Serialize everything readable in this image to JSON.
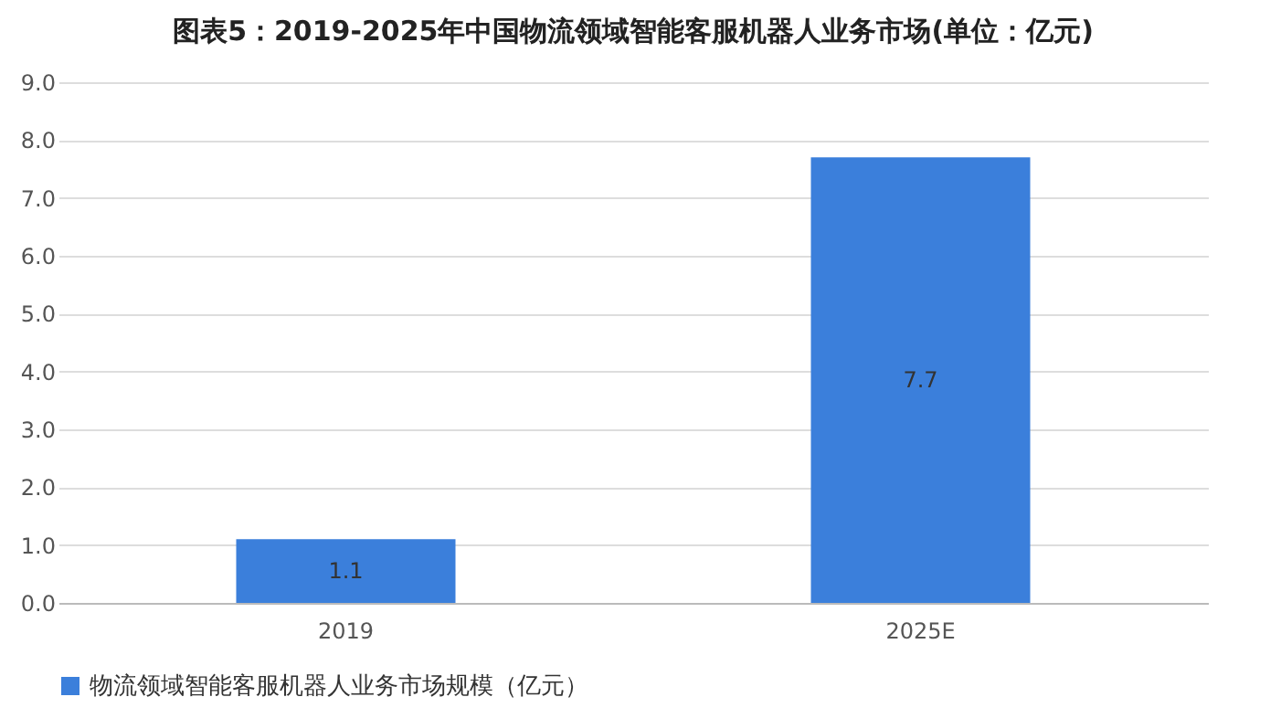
{
  "chart_data": {
    "type": "bar",
    "title": "图表5：2019-2025年中国物流领域智能客服机器人业务市场(单位：亿元)",
    "categories": [
      "2019",
      "2025E"
    ],
    "series": [
      {
        "name": "物流领域智能客服机器人业务市场规模（亿元）",
        "color": "#3b7fdb",
        "values": [
          1.1,
          7.7
        ]
      }
    ],
    "ylim": [
      0,
      9
    ],
    "yticks": [
      {
        "value": 0,
        "label": "0.0"
      },
      {
        "value": 1,
        "label": "1.0"
      },
      {
        "value": 2,
        "label": "2.0"
      },
      {
        "value": 3,
        "label": "3.0"
      },
      {
        "value": 4,
        "label": "4.0"
      },
      {
        "value": 5,
        "label": "5.0"
      },
      {
        "value": 6,
        "label": "6.0"
      },
      {
        "value": 7,
        "label": "7.0"
      },
      {
        "value": 8,
        "label": "8.0"
      },
      {
        "value": 9,
        "label": "9.0"
      }
    ],
    "grid": "y",
    "legend": "bottom",
    "data_labels": true
  }
}
